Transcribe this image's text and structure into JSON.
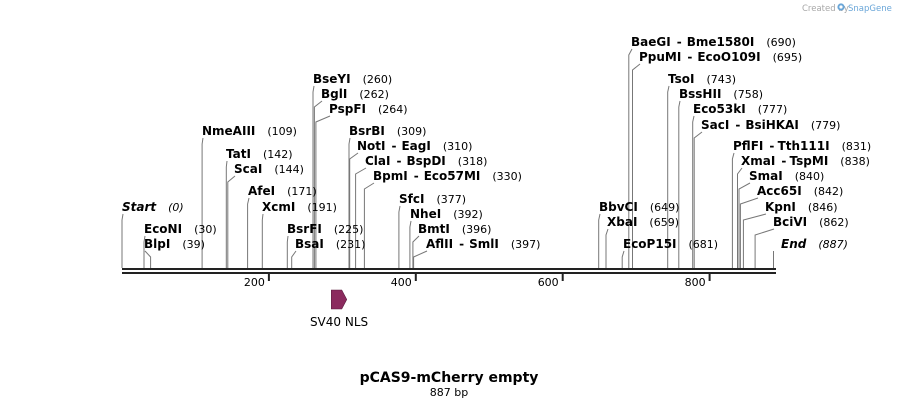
{
  "credit": {
    "prefix": "Created by",
    "brand": "SnapGene",
    "brand_color": "#6aa6d8"
  },
  "plasmid": {
    "name": "pCAS9-mCherry empty",
    "length_label": "887 bp",
    "length": 887
  },
  "axis": {
    "ticks": [
      200,
      400,
      600,
      800
    ],
    "start": 0,
    "end": 887
  },
  "features": [
    {
      "name": "SV40 NLS",
      "start": 285,
      "end": 306,
      "color": "#8b2a5e",
      "strand": "+"
    }
  ],
  "sites": [
    {
      "name": "Start",
      "position": 0,
      "italic": true,
      "display_pos": "(0)"
    },
    {
      "name": "EcoNI",
      "position": 30,
      "display_pos": "(30)"
    },
    {
      "name": "BlpI",
      "position": 39,
      "display_pos": "(39)"
    },
    {
      "name": "NmeAIII",
      "position": 109,
      "display_pos": "(109)"
    },
    {
      "name": "TatI",
      "position": 142,
      "display_pos": "(142)"
    },
    {
      "name": "ScaI",
      "position": 144,
      "display_pos": "(144)"
    },
    {
      "name": "AfeI",
      "position": 171,
      "display_pos": "(171)"
    },
    {
      "name": "XcmI",
      "position": 191,
      "display_pos": "(191)"
    },
    {
      "name": "BsrFI",
      "position": 225,
      "display_pos": "(225)"
    },
    {
      "name": "BsaI",
      "position": 231,
      "display_pos": "(231)"
    },
    {
      "name": "BseYI",
      "position": 260,
      "display_pos": "(260)"
    },
    {
      "name": "BglI",
      "position": 262,
      "display_pos": "(262)"
    },
    {
      "name": "PspFI",
      "position": 264,
      "display_pos": "(264)"
    },
    {
      "name": "BsrBI",
      "position": 309,
      "display_pos": "(309)"
    },
    {
      "name": "NotI",
      "alias": "EagI",
      "position": 310,
      "display_pos": "(310)"
    },
    {
      "name": "ClaI",
      "alias": "BspDI",
      "position": 318,
      "display_pos": "(318)"
    },
    {
      "name": "BpmI",
      "alias": "Eco57MI",
      "position": 330,
      "display_pos": "(330)"
    },
    {
      "name": "SfcI",
      "position": 377,
      "display_pos": "(377)"
    },
    {
      "name": "NheI",
      "position": 392,
      "display_pos": "(392)"
    },
    {
      "name": "BmtI",
      "position": 396,
      "display_pos": "(396)"
    },
    {
      "name": "AflII",
      "alias": "SmlI",
      "position": 397,
      "display_pos": "(397)"
    },
    {
      "name": "BbvCI",
      "position": 649,
      "display_pos": "(649)"
    },
    {
      "name": "XbaI",
      "position": 659,
      "display_pos": "(659)"
    },
    {
      "name": "EcoP15I",
      "position": 681,
      "display_pos": "(681)"
    },
    {
      "name": "BaeGI",
      "alias": "Bme1580I",
      "position": 690,
      "display_pos": "(690)"
    },
    {
      "name": "PpuMI",
      "alias": "EcoO109I",
      "position": 695,
      "display_pos": "(695)"
    },
    {
      "name": "TsoI",
      "position": 743,
      "display_pos": "(743)"
    },
    {
      "name": "BssHII",
      "position": 758,
      "display_pos": "(758)"
    },
    {
      "name": "Eco53kI",
      "position": 777,
      "display_pos": "(777)"
    },
    {
      "name": "SacI",
      "alias": "BsiHKAI",
      "position": 779,
      "display_pos": "(779)"
    },
    {
      "name": "PflFI",
      "alias": "Tth111I",
      "position": 831,
      "display_pos": "(831)"
    },
    {
      "name": "XmaI",
      "alias": "TspMI",
      "position": 838,
      "display_pos": "(838)"
    },
    {
      "name": "SmaI",
      "position": 840,
      "display_pos": "(840)"
    },
    {
      "name": "Acc65I",
      "position": 842,
      "display_pos": "(842)"
    },
    {
      "name": "KpnI",
      "position": 846,
      "display_pos": "(846)"
    },
    {
      "name": "BciVI",
      "position": 862,
      "display_pos": "(862)"
    },
    {
      "name": "End",
      "position": 887,
      "italic": true,
      "display_pos": "(887)"
    }
  ]
}
